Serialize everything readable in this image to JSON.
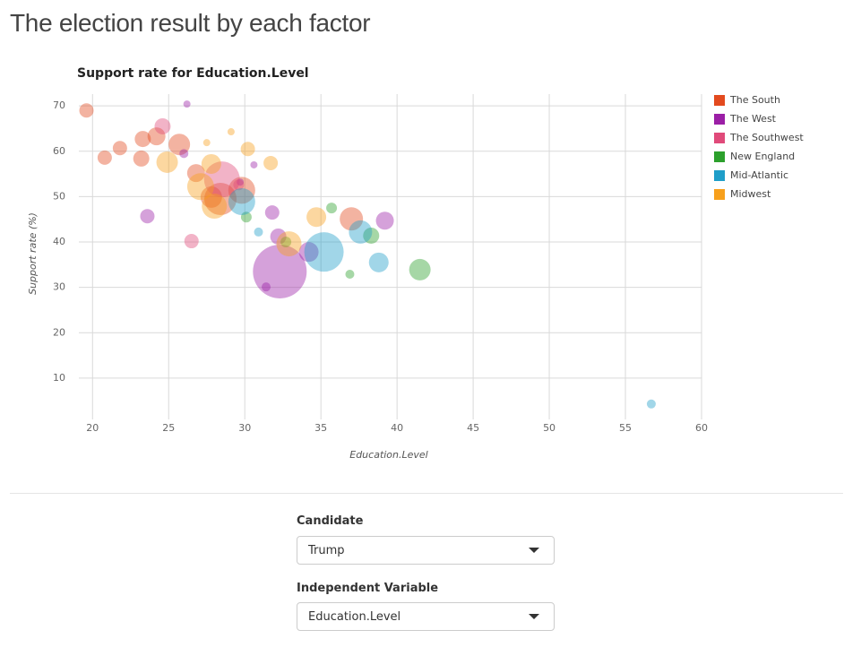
{
  "title": "The election result by each factor",
  "chart_data": {
    "type": "scatter",
    "title": "Support rate for Education.Level",
    "x_label": "Education.Level",
    "y_label": "Support rate (%)",
    "xlim": [
      19.1,
      60
    ],
    "ylim": [
      0.9,
      72.6
    ],
    "xticks": [
      20,
      25,
      30,
      35,
      40,
      45,
      50,
      55,
      60
    ],
    "yticks": [
      10,
      20,
      30,
      40,
      50,
      60,
      70
    ],
    "grid": true,
    "legend": "right",
    "series": [
      {
        "name": "The South",
        "color": "#e34a1e",
        "x": [
          19.6,
          20.8,
          21.8,
          23.2,
          23.3,
          24.2,
          25.7,
          26.8,
          27.8,
          28.4,
          29.8,
          37.0
        ],
        "values": [
          69.0,
          58.6,
          60.7,
          58.4,
          62.7,
          63.3,
          61.5,
          55.2,
          49.9,
          49.5,
          51.4,
          45.1
        ],
        "sizes": [
          64,
          64,
          64,
          81,
          81,
          100,
          144,
          100,
          144,
          324,
          225,
          169
        ]
      },
      {
        "name": "The West",
        "color": "#9b1fa6",
        "x": [
          26.2,
          26.0,
          23.6,
          30.6,
          31.8,
          32.3,
          31.4,
          32.2,
          34.2,
          39.2,
          29.7
        ],
        "values": [
          70.4,
          59.5,
          45.7,
          57.0,
          46.5,
          33.5,
          30.1,
          41.2,
          37.8,
          44.7,
          53.2
        ],
        "sizes": [
          16,
          25,
          64,
          16,
          64,
          900,
          25,
          81,
          121,
          100,
          16
        ]
      },
      {
        "name": "The Southwest",
        "color": "#e04a7a",
        "x": [
          24.6,
          26.5,
          28.5,
          29.6
        ],
        "values": [
          65.5,
          40.2,
          53.8,
          52.6
        ],
        "sizes": [
          81,
          64,
          400,
          36
        ]
      },
      {
        "name": "New England",
        "color": "#2ca02c",
        "x": [
          35.7,
          38.3,
          41.5,
          36.9,
          30.1,
          32.7
        ],
        "values": [
          47.5,
          41.4,
          33.9,
          32.9,
          45.5,
          40.0
        ],
        "sizes": [
          36,
          81,
          144,
          25,
          36,
          36
        ]
      },
      {
        "name": "Mid-Atlantic",
        "color": "#1f9ec9",
        "x": [
          35.2,
          37.6,
          38.8,
          30.9,
          29.8,
          56.7
        ],
        "values": [
          37.8,
          42.2,
          35.5,
          42.2,
          48.9,
          4.3
        ],
        "sizes": [
          484,
          169,
          121,
          25,
          225,
          25
        ]
      },
      {
        "name": "Midwest",
        "color": "#f7a01c",
        "x": [
          27.5,
          29.1,
          30.2,
          31.7,
          24.9,
          27.8,
          27.1,
          28.0,
          34.7,
          32.9
        ],
        "values": [
          61.9,
          64.3,
          60.5,
          57.4,
          57.6,
          57.2,
          52.2,
          47.9,
          45.5,
          39.6
        ],
        "sizes": [
          16,
          16,
          64,
          64,
          144,
          121,
          225,
          196,
          121,
          196
        ]
      }
    ]
  },
  "controls": [
    {
      "label": "Candidate",
      "value": "Trump"
    },
    {
      "label": "Independent Variable",
      "value": "Education.Level"
    }
  ]
}
